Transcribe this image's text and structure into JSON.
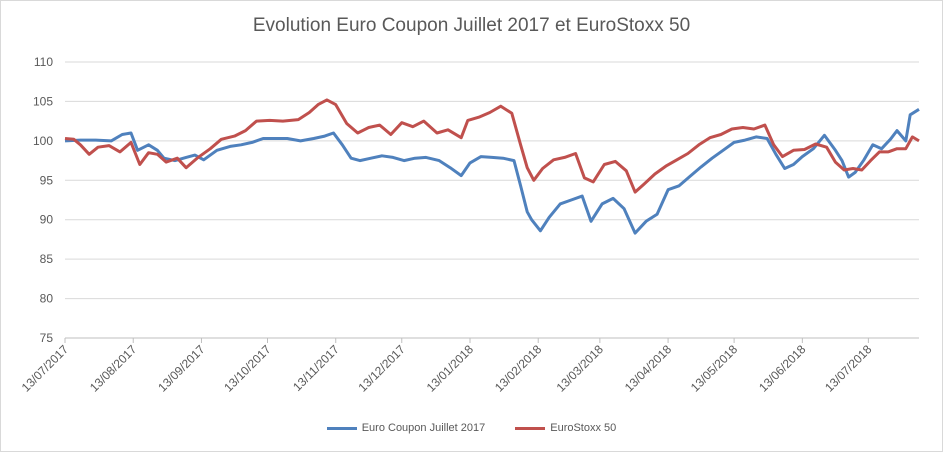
{
  "chart_data": {
    "type": "line",
    "title": "Evolution Euro Coupon Juillet 2017 et EuroStoxx 50",
    "ylim": [
      75,
      110
    ],
    "yticks": [
      75,
      80,
      85,
      90,
      95,
      100,
      105,
      110
    ],
    "xlabels": [
      "13/07/2017",
      "13/08/2017",
      "13/09/2017",
      "13/10/2017",
      "13/11/2017",
      "13/12/2017",
      "13/01/2018",
      "13/02/2018",
      "13/03/2018",
      "13/04/2018",
      "13/05/2018",
      "13/06/2018",
      "13/07/2018"
    ],
    "grid": true,
    "legend_position": "bottom",
    "series": [
      {
        "name": "Euro Coupon Juillet 2017",
        "color": "#4f81bd",
        "points": [
          [
            "2017-07-13",
            100.0
          ],
          [
            "2017-07-20",
            100.1
          ],
          [
            "2017-07-27",
            100.1
          ],
          [
            "2017-08-03",
            100.0
          ],
          [
            "2017-08-08",
            100.8
          ],
          [
            "2017-08-12",
            101.0
          ],
          [
            "2017-08-15",
            98.8
          ],
          [
            "2017-08-20",
            99.5
          ],
          [
            "2017-08-24",
            98.8
          ],
          [
            "2017-08-27",
            97.8
          ],
          [
            "2017-09-01",
            97.5
          ],
          [
            "2017-09-06",
            97.9
          ],
          [
            "2017-09-10",
            98.2
          ],
          [
            "2017-09-14",
            97.6
          ],
          [
            "2017-09-20",
            98.8
          ],
          [
            "2017-09-26",
            99.3
          ],
          [
            "2017-10-01",
            99.5
          ],
          [
            "2017-10-06",
            99.8
          ],
          [
            "2017-10-11",
            100.3
          ],
          [
            "2017-10-16",
            100.3
          ],
          [
            "2017-10-22",
            100.3
          ],
          [
            "2017-10-28",
            100.0
          ],
          [
            "2017-11-03",
            100.3
          ],
          [
            "2017-11-08",
            100.6
          ],
          [
            "2017-11-12",
            101.0
          ],
          [
            "2017-11-16",
            99.5
          ],
          [
            "2017-11-20",
            97.8
          ],
          [
            "2017-11-24",
            97.5
          ],
          [
            "2017-11-29",
            97.8
          ],
          [
            "2017-12-04",
            98.1
          ],
          [
            "2017-12-09",
            97.9
          ],
          [
            "2017-12-14",
            97.5
          ],
          [
            "2017-12-19",
            97.8
          ],
          [
            "2017-12-24",
            97.9
          ],
          [
            "2017-12-30",
            97.5
          ],
          [
            "2018-01-04",
            96.6
          ],
          [
            "2018-01-09",
            95.6
          ],
          [
            "2018-01-13",
            97.2
          ],
          [
            "2018-01-18",
            98.0
          ],
          [
            "2018-01-23",
            97.9
          ],
          [
            "2018-01-28",
            97.8
          ],
          [
            "2018-02-02",
            97.5
          ],
          [
            "2018-02-05",
            94.3
          ],
          [
            "2018-02-08",
            91.0
          ],
          [
            "2018-02-10",
            90.0
          ],
          [
            "2018-02-14",
            88.6
          ],
          [
            "2018-02-18",
            90.3
          ],
          [
            "2018-02-23",
            92.0
          ],
          [
            "2018-02-28",
            92.5
          ],
          [
            "2018-03-05",
            93.0
          ],
          [
            "2018-03-09",
            89.8
          ],
          [
            "2018-03-14",
            92.0
          ],
          [
            "2018-03-19",
            92.7
          ],
          [
            "2018-03-24",
            91.4
          ],
          [
            "2018-03-29",
            88.3
          ],
          [
            "2018-04-03",
            89.8
          ],
          [
            "2018-04-08",
            90.7
          ],
          [
            "2018-04-13",
            93.8
          ],
          [
            "2018-04-18",
            94.3
          ],
          [
            "2018-04-23",
            95.5
          ],
          [
            "2018-04-28",
            96.7
          ],
          [
            "2018-05-03",
            97.8
          ],
          [
            "2018-05-08",
            98.8
          ],
          [
            "2018-05-13",
            99.8
          ],
          [
            "2018-05-18",
            100.1
          ],
          [
            "2018-05-23",
            100.5
          ],
          [
            "2018-05-28",
            100.3
          ],
          [
            "2018-06-01",
            98.3
          ],
          [
            "2018-06-05",
            96.5
          ],
          [
            "2018-06-09",
            97.0
          ],
          [
            "2018-06-13",
            98.0
          ],
          [
            "2018-06-18",
            99.0
          ],
          [
            "2018-06-23",
            100.7
          ],
          [
            "2018-06-28",
            98.8
          ],
          [
            "2018-07-01",
            97.5
          ],
          [
            "2018-07-04",
            95.4
          ],
          [
            "2018-07-07",
            96.0
          ],
          [
            "2018-07-11",
            97.6
          ],
          [
            "2018-07-15",
            99.5
          ],
          [
            "2018-07-19",
            99.0
          ],
          [
            "2018-07-23",
            100.2
          ],
          [
            "2018-07-26",
            101.3
          ],
          [
            "2018-07-30",
            100.0
          ],
          [
            "2018-08-01",
            103.3
          ],
          [
            "2018-08-05",
            104.0
          ]
        ]
      },
      {
        "name": "EuroStoxx 50",
        "color": "#c0504d",
        "points": [
          [
            "2017-07-13",
            100.3
          ],
          [
            "2017-07-17",
            100.2
          ],
          [
            "2017-07-20",
            99.5
          ],
          [
            "2017-07-24",
            98.3
          ],
          [
            "2017-07-28",
            99.2
          ],
          [
            "2017-08-02",
            99.4
          ],
          [
            "2017-08-07",
            98.6
          ],
          [
            "2017-08-12",
            99.8
          ],
          [
            "2017-08-16",
            97.0
          ],
          [
            "2017-08-20",
            98.5
          ],
          [
            "2017-08-24",
            98.3
          ],
          [
            "2017-08-28",
            97.3
          ],
          [
            "2017-09-02",
            97.8
          ],
          [
            "2017-09-06",
            96.6
          ],
          [
            "2017-09-11",
            97.8
          ],
          [
            "2017-09-17",
            99.0
          ],
          [
            "2017-09-22",
            100.2
          ],
          [
            "2017-09-28",
            100.6
          ],
          [
            "2017-10-03",
            101.3
          ],
          [
            "2017-10-08",
            102.5
          ],
          [
            "2017-10-14",
            102.6
          ],
          [
            "2017-10-20",
            102.5
          ],
          [
            "2017-10-27",
            102.7
          ],
          [
            "2017-11-01",
            103.6
          ],
          [
            "2017-11-05",
            104.6
          ],
          [
            "2017-11-09",
            105.2
          ],
          [
            "2017-11-13",
            104.6
          ],
          [
            "2017-11-18",
            102.2
          ],
          [
            "2017-11-23",
            101.0
          ],
          [
            "2017-11-28",
            101.7
          ],
          [
            "2017-12-03",
            102.0
          ],
          [
            "2017-12-08",
            100.8
          ],
          [
            "2017-12-13",
            102.3
          ],
          [
            "2017-12-18",
            101.8
          ],
          [
            "2017-12-23",
            102.5
          ],
          [
            "2017-12-29",
            101.0
          ],
          [
            "2018-01-03",
            101.4
          ],
          [
            "2018-01-09",
            100.4
          ],
          [
            "2018-01-12",
            102.6
          ],
          [
            "2018-01-17",
            103.0
          ],
          [
            "2018-01-22",
            103.6
          ],
          [
            "2018-01-27",
            104.4
          ],
          [
            "2018-02-01",
            103.5
          ],
          [
            "2018-02-05",
            99.5
          ],
          [
            "2018-02-08",
            96.6
          ],
          [
            "2018-02-11",
            95.0
          ],
          [
            "2018-02-15",
            96.5
          ],
          [
            "2018-02-20",
            97.6
          ],
          [
            "2018-02-25",
            97.9
          ],
          [
            "2018-03-02",
            98.4
          ],
          [
            "2018-03-06",
            95.3
          ],
          [
            "2018-03-10",
            94.8
          ],
          [
            "2018-03-15",
            97.0
          ],
          [
            "2018-03-20",
            97.4
          ],
          [
            "2018-03-25",
            96.2
          ],
          [
            "2018-03-29",
            93.5
          ],
          [
            "2018-04-02",
            94.5
          ],
          [
            "2018-04-07",
            95.8
          ],
          [
            "2018-04-12",
            96.8
          ],
          [
            "2018-04-17",
            97.6
          ],
          [
            "2018-04-22",
            98.4
          ],
          [
            "2018-04-27",
            99.5
          ],
          [
            "2018-05-02",
            100.4
          ],
          [
            "2018-05-07",
            100.8
          ],
          [
            "2018-05-12",
            101.5
          ],
          [
            "2018-05-17",
            101.7
          ],
          [
            "2018-05-22",
            101.5
          ],
          [
            "2018-05-27",
            102.0
          ],
          [
            "2018-05-31",
            99.5
          ],
          [
            "2018-06-04",
            98.0
          ],
          [
            "2018-06-09",
            98.8
          ],
          [
            "2018-06-14",
            98.9
          ],
          [
            "2018-06-19",
            99.6
          ],
          [
            "2018-06-24",
            99.2
          ],
          [
            "2018-06-28",
            97.3
          ],
          [
            "2018-07-02",
            96.3
          ],
          [
            "2018-07-06",
            96.5
          ],
          [
            "2018-07-10",
            96.3
          ],
          [
            "2018-07-14",
            97.5
          ],
          [
            "2018-07-18",
            98.6
          ],
          [
            "2018-07-22",
            98.6
          ],
          [
            "2018-07-26",
            99.0
          ],
          [
            "2018-07-30",
            99.0
          ],
          [
            "2018-08-02",
            100.5
          ],
          [
            "2018-08-05",
            100.0
          ]
        ]
      }
    ]
  }
}
